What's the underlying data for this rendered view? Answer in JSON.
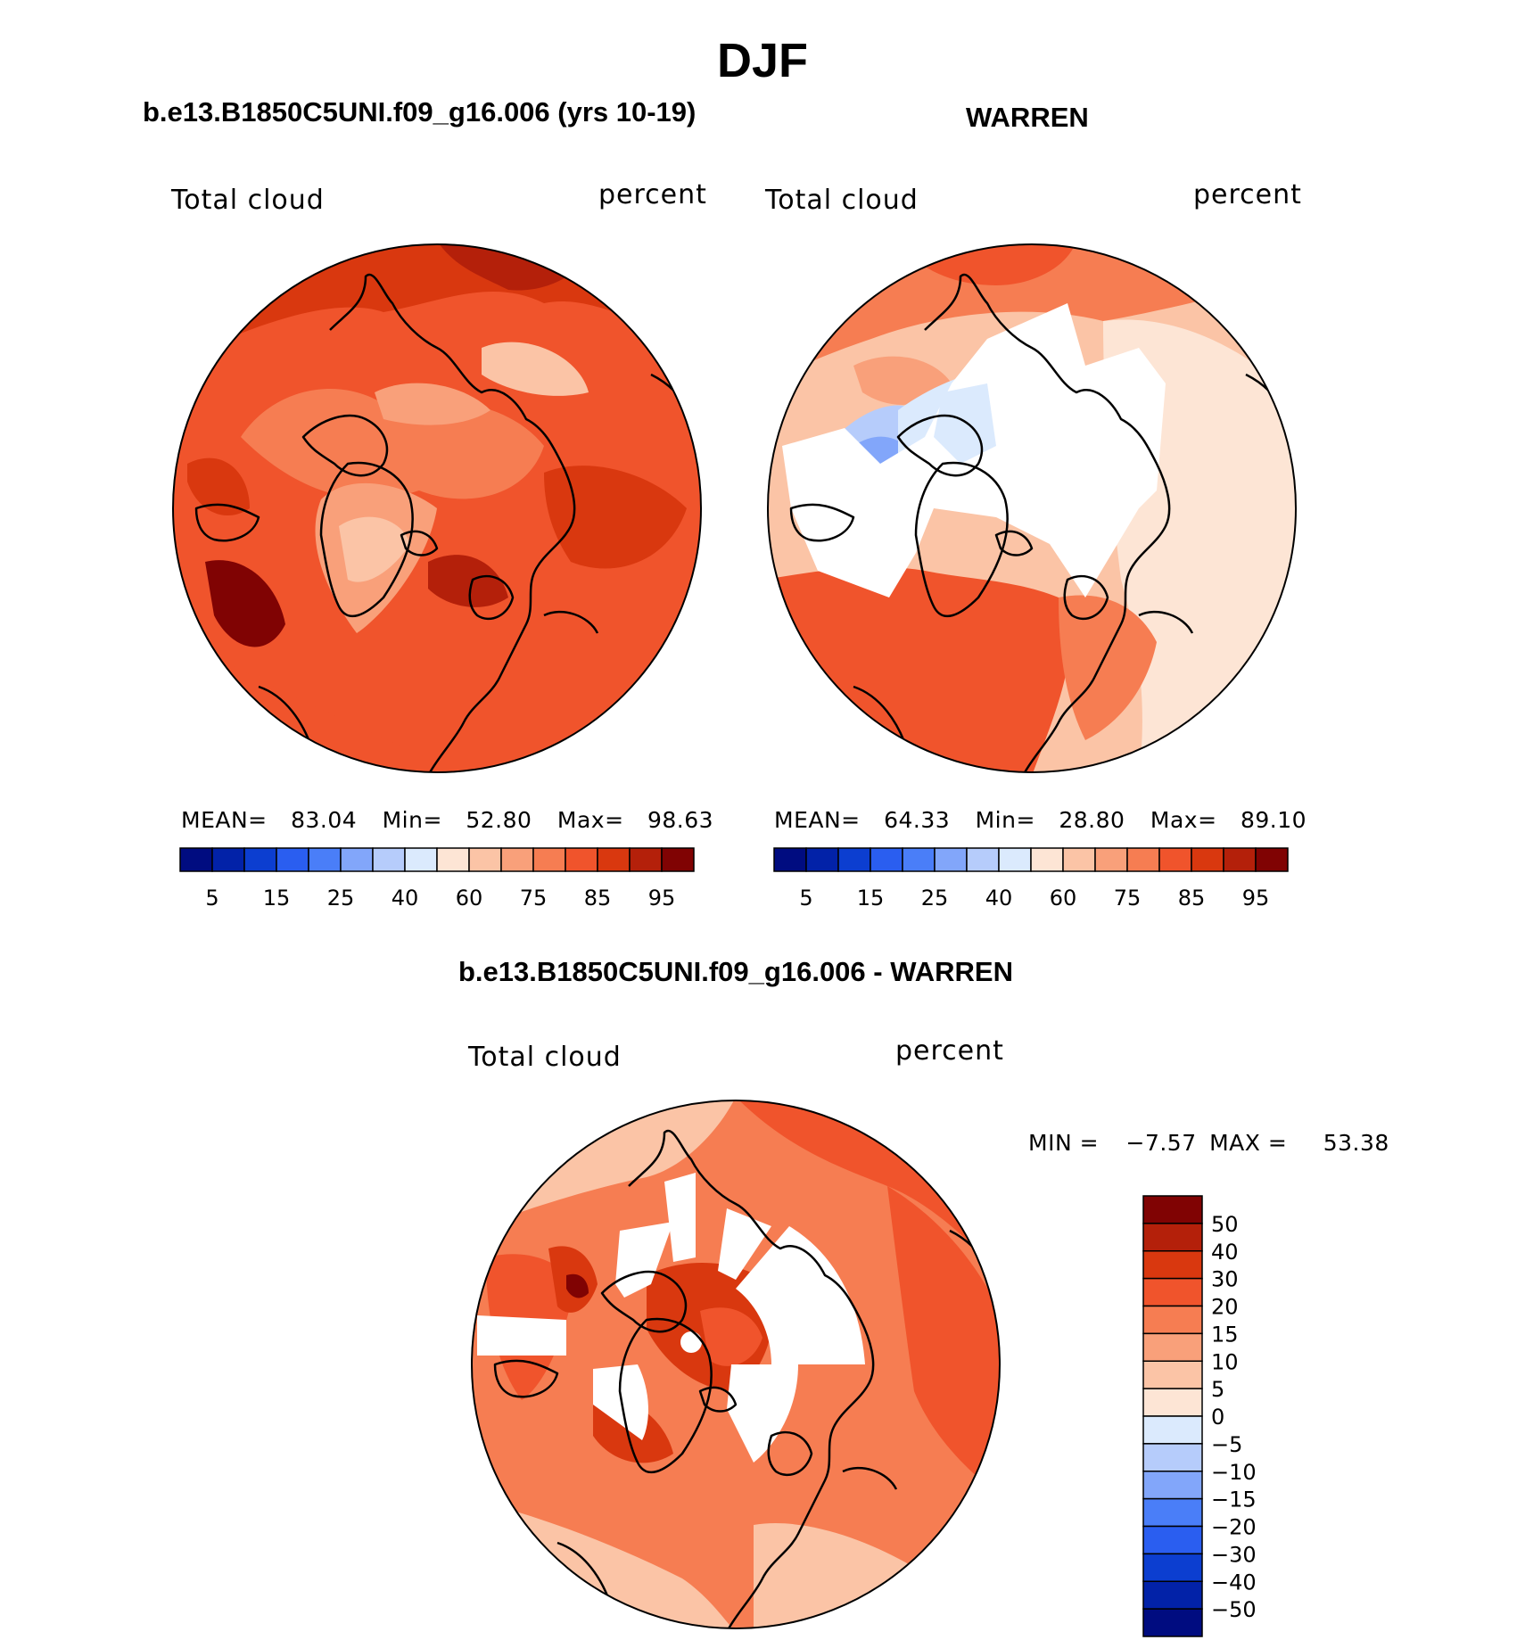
{
  "page": {
    "title": "DJF"
  },
  "chart_data": [
    {
      "type": "contour-map",
      "projection": "north-polar-stereographic",
      "title": "b.e13.B1850C5UNI.f09_g16.006 (yrs 10-19)",
      "variable_label": "Total cloud",
      "units_label": "percent",
      "stats": {
        "mean_label": "MEAN=",
        "mean": "83.04",
        "min_label": "Min=",
        "min": "52.80",
        "max_label": "Max=",
        "max": "98.63"
      },
      "base_level": 85,
      "colorbar": {
        "orientation": "horizontal",
        "colors": [
          "#000c80",
          "#0222a8",
          "#0c3ed0",
          "#2a5ef0",
          "#4a7ef8",
          "#82a6fa",
          "#b6ccfb",
          "#dbeafd",
          "#fde5d5",
          "#fbc4a6",
          "#f9a07a",
          "#f67d52",
          "#f0542c",
          "#d9380f",
          "#b4200a",
          "#800303"
        ],
        "tick_labels": [
          "5",
          "15",
          "25",
          "40",
          "60",
          "75",
          "85",
          "95"
        ]
      }
    },
    {
      "type": "contour-map",
      "projection": "north-polar-stereographic",
      "title": "WARREN",
      "variable_label": "Total cloud",
      "units_label": "percent",
      "stats": {
        "mean_label": "MEAN=",
        "mean": "64.33",
        "min_label": "Min=",
        "min": "28.80",
        "max_label": "Max=",
        "max": "89.10"
      },
      "base_level": 65,
      "colorbar": {
        "orientation": "horizontal",
        "colors": [
          "#000c80",
          "#0222a8",
          "#0c3ed0",
          "#2a5ef0",
          "#4a7ef8",
          "#82a6fa",
          "#b6ccfb",
          "#dbeafd",
          "#fde5d5",
          "#fbc4a6",
          "#f9a07a",
          "#f67d52",
          "#f0542c",
          "#d9380f",
          "#b4200a",
          "#800303"
        ],
        "tick_labels": [
          "5",
          "15",
          "25",
          "40",
          "60",
          "75",
          "85",
          "95"
        ]
      }
    },
    {
      "type": "contour-map",
      "projection": "north-polar-stereographic",
      "title": "b.e13.B1850C5UNI.f09_g16.006 - WARREN",
      "variable_label": "Total cloud",
      "units_label": "percent",
      "stats": {
        "min_label": "MIN =",
        "min": "−7.57",
        "max_label": "MAX =",
        "max": "53.38"
      },
      "base_level": 20,
      "colorbar": {
        "orientation": "vertical",
        "colors": [
          "#800303",
          "#b4200a",
          "#d9380f",
          "#f0542c",
          "#f67d52",
          "#f9a07a",
          "#fbc4a6",
          "#fde5d5",
          "#dbeafd",
          "#b6ccfb",
          "#82a6fa",
          "#4a7ef8",
          "#2a5ef0",
          "#0c3ed0",
          "#0222a8",
          "#000c80"
        ],
        "tick_labels": [
          "50",
          "40",
          "30",
          "20",
          "15",
          "10",
          "5",
          "0",
          "−5",
          "−10",
          "−15",
          "−20",
          "−30",
          "−40",
          "−50"
        ]
      }
    }
  ]
}
